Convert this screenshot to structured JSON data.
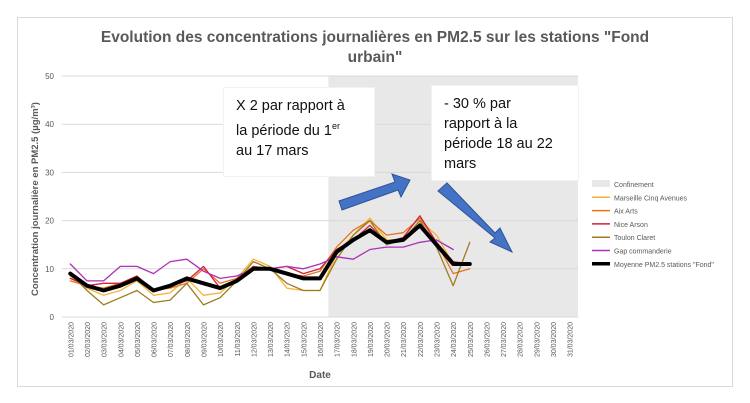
{
  "chart_data": {
    "type": "line",
    "title": "Evolution des concentrations journalières en PM2.5 sur les stations \"Fond urbain\"",
    "title_lines": [
      "Evolution des concentrations journalières en PM2.5 sur les stations \"Fond",
      "urbain\""
    ],
    "xlabel": "Date",
    "ylabel": "Concentration journalière en PM2.5 (µg/m³)",
    "ylim": [
      0,
      50
    ],
    "yticks": [
      0,
      10,
      20,
      30,
      40,
      50
    ],
    "grid": true,
    "legend_position": "right",
    "categories": [
      "01/03/2020",
      "02/03/2020",
      "03/03/2020",
      "04/03/2020",
      "05/03/2020",
      "06/03/2020",
      "07/03/2020",
      "08/03/2020",
      "09/03/2020",
      "10/03/2020",
      "11/03/2020",
      "12/03/2020",
      "13/03/2020",
      "14/03/2020",
      "15/03/2020",
      "16/03/2020",
      "17/03/2020",
      "18/03/2020",
      "19/03/2020",
      "20/03/2020",
      "21/03/2020",
      "22/03/2020",
      "23/03/2020",
      "24/03/2020",
      "25/03/2020",
      "26/03/2020",
      "27/03/2020",
      "28/03/2020",
      "29/03/2020",
      "30/03/2020",
      "31/03/2020"
    ],
    "shaded_region": {
      "name": "Confinement",
      "from": "17/03/2020",
      "to": "31/03/2020",
      "color": "#e8e8e8"
    },
    "series": [
      {
        "name": "Marseille Cinq Avenues",
        "color": "#f5b335",
        "width": 1.3,
        "values": [
          8.5,
          6,
          4.5,
          5.5,
          7.5,
          4.5,
          5,
          8,
          4.5,
          5,
          8,
          12,
          10.5,
          6,
          5.5,
          5.5,
          13,
          17,
          20.5,
          16,
          16,
          20,
          17,
          11,
          null,
          null,
          null,
          null,
          null,
          null,
          null
        ]
      },
      {
        "name": "Aix Arts",
        "color": "#e8741e",
        "width": 1.3,
        "values": [
          7.5,
          6.5,
          6,
          7,
          8,
          5.5,
          6,
          7,
          10,
          7,
          8,
          10.5,
          10,
          9,
          8.5,
          9.5,
          14.5,
          18,
          20,
          17,
          17.5,
          20.5,
          15.5,
          9,
          10,
          null,
          null,
          null,
          null,
          null,
          null
        ]
      },
      {
        "name": "Nice Arson",
        "color": "#d0223a",
        "width": 1.3,
        "values": [
          8,
          6.5,
          7,
          7,
          8.5,
          5.5,
          6.5,
          7.5,
          10.5,
          6,
          7.5,
          10.5,
          10,
          10.5,
          9,
          10,
          14,
          16,
          19,
          15.5,
          16.5,
          21,
          15.5,
          11.5,
          11,
          null,
          null,
          null,
          null,
          null,
          null
        ]
      },
      {
        "name": "Toulon Claret",
        "color": "#a07a1f",
        "width": 1.3,
        "values": [
          9,
          5.5,
          2.5,
          4,
          5.5,
          3,
          3.5,
          7,
          2.5,
          4,
          7.5,
          11.5,
          10,
          7,
          5.5,
          5.5,
          12,
          17,
          20,
          15,
          16,
          20,
          14.5,
          6.5,
          15.5,
          null,
          null,
          null,
          null,
          null,
          null
        ]
      },
      {
        "name": "Gap commanderie",
        "color": "#b02fb8",
        "width": 1.3,
        "values": [
          11,
          7.5,
          7.5,
          10.5,
          10.5,
          9,
          11.5,
          12,
          9.5,
          8,
          8.5,
          10,
          10,
          10.5,
          10,
          11,
          12.5,
          12,
          14,
          14.5,
          14.5,
          15.5,
          16,
          14,
          null,
          null,
          null,
          null,
          null,
          null,
          null
        ]
      },
      {
        "name": "Moyenne PM2.5 stations \"Fond\"",
        "color": "#000000",
        "width": 4,
        "values": [
          9,
          6.5,
          5.5,
          6.5,
          8,
          5.5,
          6.5,
          8,
          7,
          6,
          7.5,
          10,
          10,
          9,
          8,
          8,
          13.5,
          16,
          18,
          15.5,
          16,
          19,
          15,
          11,
          11,
          null,
          null,
          null,
          null,
          null,
          null
        ]
      }
    ],
    "annotations": [
      {
        "lines": [
          "X 2 par rapport à",
          "la période du 1",
          "au 17 mars"
        ],
        "superscript": "er"
      },
      {
        "lines": [
          "- 30 % par",
          "rapport à la",
          "période 18 au 22",
          "mars"
        ]
      }
    ]
  }
}
